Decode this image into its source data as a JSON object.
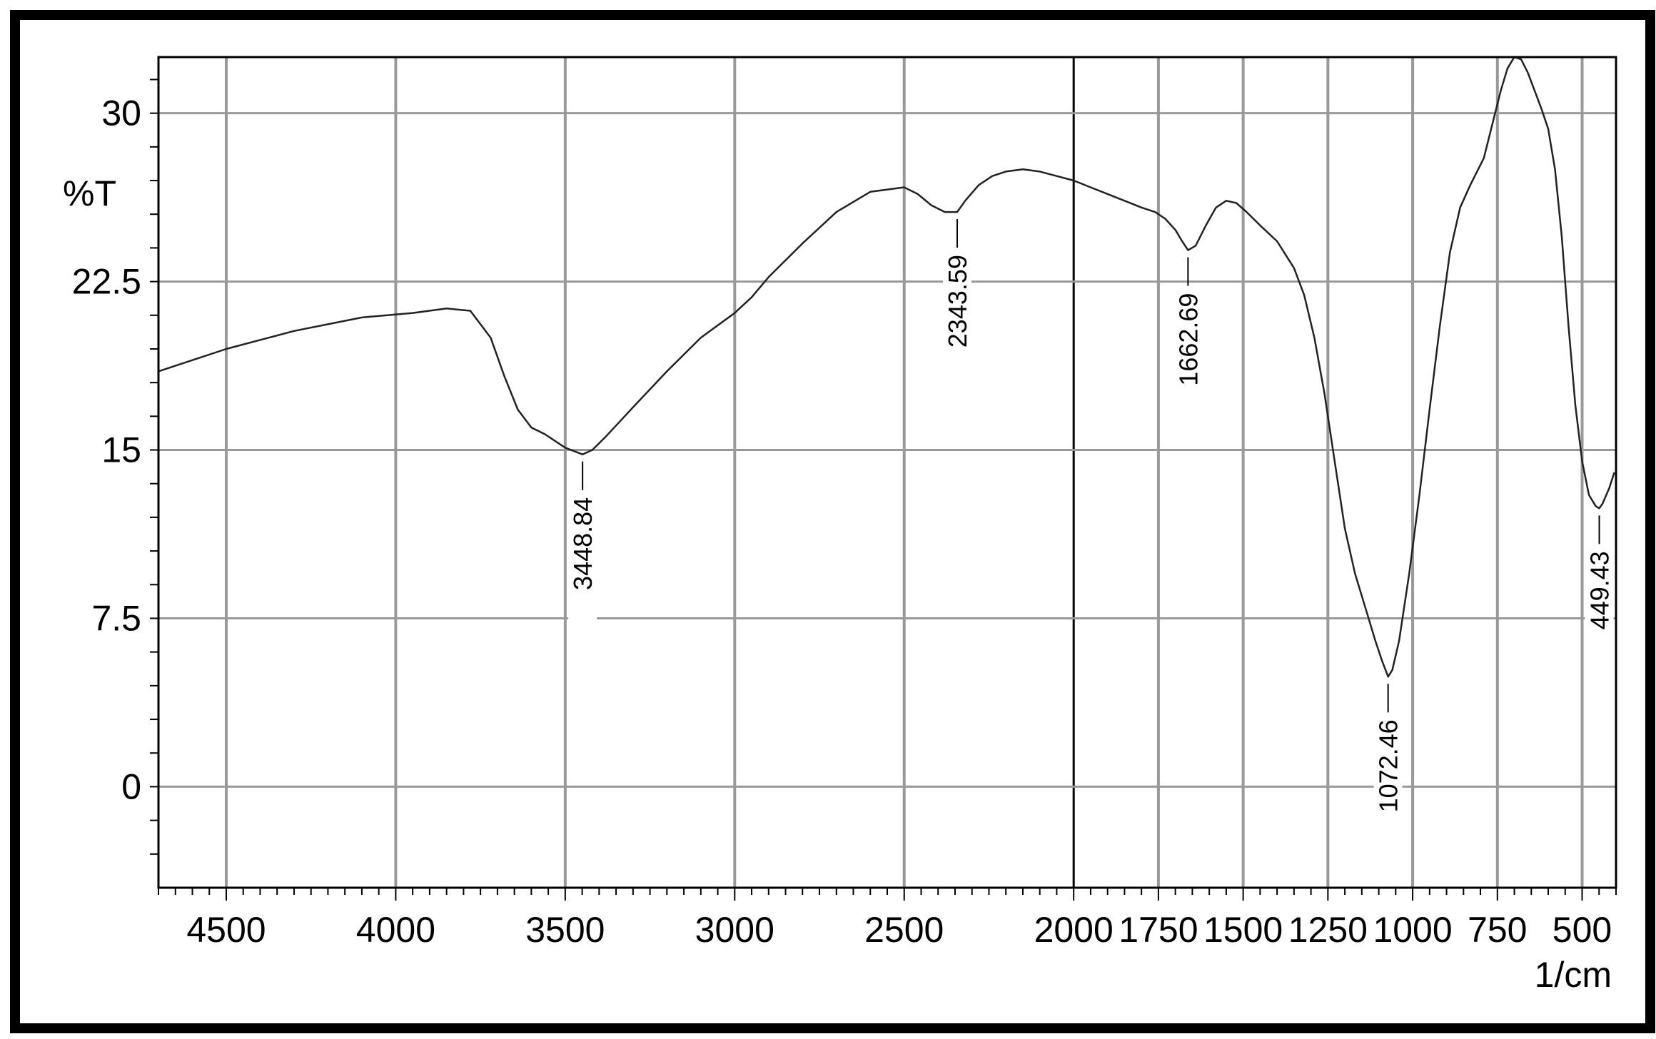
{
  "chart_data": {
    "type": "line",
    "ylabel": "%T",
    "xlabel": "1/cm",
    "xlim": [
      4700,
      400
    ],
    "ylim": [
      -4.5,
      32.5
    ],
    "xticks": [
      4500,
      4000,
      3500,
      3000,
      2500,
      2000,
      1750,
      1500,
      1250,
      1000,
      750,
      500
    ],
    "xtick_labels": [
      "4500",
      "4000",
      "3500",
      "3000",
      "2500",
      "2000",
      "1750",
      "1500",
      "1250",
      "1000",
      "750",
      "500"
    ],
    "yticks": [
      0,
      7.5,
      15,
      22.5,
      30
    ],
    "ytick_labels": [
      "0",
      "7.5",
      "15",
      "22.5",
      "30"
    ],
    "grid": true,
    "series": [
      {
        "x": [
          4700,
          4500,
          4300,
          4100,
          3950,
          3850,
          3780,
          3720,
          3680,
          3640,
          3600,
          3560,
          3500,
          3448.84,
          3420,
          3380,
          3300,
          3200,
          3100,
          3000,
          2950,
          2900,
          2800,
          2700,
          2600,
          2500,
          2460,
          2420,
          2380,
          2343.59,
          2320,
          2280,
          2240,
          2200,
          2150,
          2100,
          2050,
          2000,
          1950,
          1900,
          1850,
          1800,
          1760,
          1730,
          1700,
          1680,
          1662.69,
          1640,
          1610,
          1580,
          1550,
          1520,
          1490,
          1450,
          1400,
          1350,
          1320,
          1290,
          1260,
          1230,
          1200,
          1170,
          1140,
          1110,
          1090,
          1072.46,
          1060,
          1040,
          1010,
          980,
          950,
          920,
          890,
          860,
          830,
          790,
          760,
          740,
          720,
          700,
          680,
          660,
          640,
          620,
          600,
          580,
          560,
          540,
          520,
          500,
          480,
          460,
          449.43,
          440,
          420,
          405
        ],
        "y": [
          18.5,
          19.5,
          20.3,
          20.9,
          21.1,
          21.3,
          21.2,
          20.0,
          18.3,
          16.8,
          16.0,
          15.7,
          15.1,
          14.8,
          15.0,
          15.6,
          16.9,
          18.5,
          20.0,
          21.1,
          21.8,
          22.7,
          24.2,
          25.6,
          26.5,
          26.7,
          26.4,
          25.9,
          25.6,
          25.6,
          26.1,
          26.8,
          27.2,
          27.4,
          27.5,
          27.4,
          27.2,
          27.0,
          26.7,
          26.4,
          26.1,
          25.8,
          25.6,
          25.3,
          24.8,
          24.3,
          23.9,
          24.1,
          25.0,
          25.8,
          26.1,
          26.0,
          25.6,
          25.0,
          24.3,
          23.1,
          21.9,
          20.0,
          17.5,
          14.5,
          11.5,
          9.5,
          8.0,
          6.5,
          5.6,
          4.9,
          5.2,
          6.5,
          9.5,
          13.0,
          16.8,
          20.5,
          23.8,
          25.8,
          26.8,
          28.0,
          29.8,
          31.0,
          32.0,
          32.5,
          32.4,
          31.8,
          31.0,
          30.2,
          29.3,
          27.5,
          24.5,
          20.5,
          17.0,
          14.5,
          13.0,
          12.5,
          12.4,
          12.6,
          13.3,
          14.0
        ]
      }
    ],
    "peaks": [
      {
        "x": 3448.84,
        "y": 14.8,
        "label": "3448.84"
      },
      {
        "x": 2343.59,
        "y": 25.6,
        "label": "2343.59"
      },
      {
        "x": 1662.69,
        "y": 23.9,
        "label": "1662.69"
      },
      {
        "x": 1072.46,
        "y": 4.9,
        "label": "1072.46"
      },
      {
        "x": 449.43,
        "y": 12.4,
        "label": "449.43"
      }
    ]
  }
}
